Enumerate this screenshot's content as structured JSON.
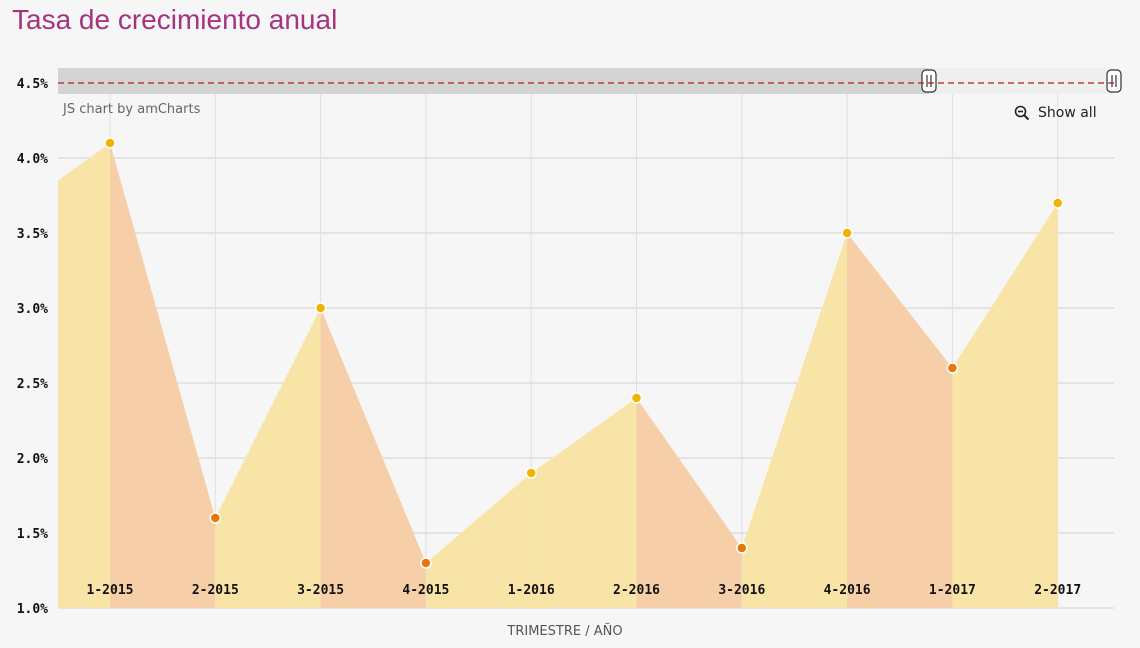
{
  "page": {
    "title": "Tasa de crecimiento anual",
    "credit": "JS chart by amCharts",
    "show_all_label": "Show all"
  },
  "chart_data": {
    "type": "area",
    "title": "Tasa de crecimiento anual",
    "xlabel": "TRIMESTRE / AÑO",
    "ylabel": "",
    "categories": [
      "1-2015",
      "2-2015",
      "3-2015",
      "4-2015",
      "1-2016",
      "2-2016",
      "3-2016",
      "4-2016",
      "1-2017",
      "2-2017"
    ],
    "values": [
      4.1,
      1.6,
      3.0,
      1.3,
      1.9,
      2.4,
      1.4,
      3.5,
      2.6,
      3.7
    ],
    "start_value": 3.85,
    "ylim": [
      1.0,
      4.6
    ],
    "yticks": [
      "1.0%",
      "1.5%",
      "2.0%",
      "2.5%",
      "3.0%",
      "3.5%",
      "4.0%",
      "4.5%"
    ],
    "ytick_values": [
      1.0,
      1.5,
      2.0,
      2.5,
      3.0,
      3.5,
      4.0,
      4.5
    ],
    "guide_line": 4.5,
    "grid": true,
    "colors": {
      "increase_fill": "#f9e4a8",
      "decrease_fill": "#f6cfa9",
      "increase_point": "#f0b400",
      "decrease_point": "#e8760f",
      "guide": "#b01c1c",
      "title": "#a63380"
    }
  }
}
